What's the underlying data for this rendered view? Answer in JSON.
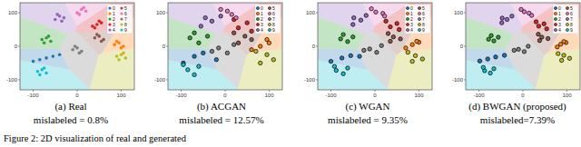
{
  "chart_data": [
    {
      "type": "scatter",
      "title": "(a) Real",
      "annotation": "mislabeled = 0.8%",
      "xlim": [
        -130,
        130
      ],
      "ylim": [
        -130,
        130
      ],
      "xticks": [
        -100,
        0,
        100
      ],
      "yticks": [
        -100,
        0,
        100
      ],
      "grid": false,
      "legend": "upper right",
      "marker": "dot",
      "series": [
        {
          "name": "0",
          "color": "#1f77b4",
          "x": [
            -100,
            -85,
            -70,
            -55,
            -40
          ],
          "values": [
            -45,
            -40,
            -35,
            -30,
            -25
          ]
        },
        {
          "name": "1",
          "color": "#ff7f0e",
          "x": [
            85,
            95,
            105,
            90,
            100
          ],
          "values": [
            5,
            10,
            0,
            15,
            -5
          ]
        },
        {
          "name": "2",
          "color": "#2ca02c",
          "x": [
            -80,
            -70,
            -60,
            -75,
            -65
          ],
          "values": [
            20,
            25,
            15,
            10,
            30
          ]
        },
        {
          "name": "3",
          "color": "#d62728",
          "x": [
            35,
            45,
            55,
            40,
            50
          ],
          "values": [
            60,
            65,
            70,
            55,
            75
          ]
        },
        {
          "name": "4",
          "color": "#9467bd",
          "x": [
            -50,
            -40,
            -30,
            -45,
            -35
          ],
          "values": [
            80,
            90,
            85,
            95,
            75
          ]
        },
        {
          "name": "5",
          "color": "#8c564b",
          "x": [
            40,
            50,
            60,
            45,
            55
          ],
          "values": [
            25,
            30,
            20,
            35,
            15
          ]
        },
        {
          "name": "6",
          "color": "#e377c2",
          "x": [
            0,
            10,
            20,
            5,
            15
          ],
          "values": [
            100,
            110,
            105,
            95,
            115
          ]
        },
        {
          "name": "7",
          "color": "#7f7f7f",
          "x": [
            -10,
            0,
            10,
            -5,
            5
          ],
          "values": [
            -10,
            -5,
            -15,
            0,
            -20
          ]
        },
        {
          "name": "8",
          "color": "#bcbd22",
          "x": [
            90,
            100,
            110,
            95,
            105
          ],
          "values": [
            -30,
            -25,
            -35,
            -40,
            -20
          ]
        },
        {
          "name": "9",
          "color": "#17becf",
          "x": [
            -90,
            -80,
            -70,
            -85,
            -75
          ],
          "values": [
            -75,
            -70,
            -80,
            -85,
            -65
          ]
        }
      ]
    },
    {
      "type": "scatter",
      "title": "(b) ACGAN",
      "annotation": "mislabeled = 12.57%",
      "xlim": [
        -130,
        130
      ],
      "ylim": [
        -130,
        130
      ],
      "xticks": [
        -100,
        0,
        100
      ],
      "yticks": [
        -100,
        0,
        100
      ],
      "grid": false,
      "legend": "upper right",
      "marker": "edged",
      "series": [
        {
          "name": "0",
          "color": "#1f77b4",
          "x": [
            -95,
            -70,
            -50,
            -20
          ],
          "values": [
            -50,
            -30,
            -20,
            -40
          ]
        },
        {
          "name": "1",
          "color": "#ff7f0e",
          "x": [
            80,
            100,
            60,
            95
          ],
          "values": [
            0,
            10,
            -10,
            20
          ]
        },
        {
          "name": "2",
          "color": "#2ca02c",
          "x": [
            -80,
            -60,
            -40,
            -70
          ],
          "values": [
            25,
            10,
            30,
            40
          ]
        },
        {
          "name": "3",
          "color": "#d62728",
          "x": [
            30,
            50,
            20,
            60
          ],
          "values": [
            55,
            70,
            80,
            45
          ]
        },
        {
          "name": "4",
          "color": "#9467bd",
          "x": [
            -45,
            -30,
            -10,
            -55
          ],
          "values": [
            85,
            75,
            90,
            60
          ]
        },
        {
          "name": "5",
          "color": "#8c564b",
          "x": [
            45,
            60,
            30,
            20
          ],
          "values": [
            30,
            20,
            10,
            40
          ]
        },
        {
          "name": "6",
          "color": "#e377c2",
          "x": [
            5,
            15,
            -10,
            25
          ],
          "values": [
            105,
            95,
            110,
            85
          ]
        },
        {
          "name": "7",
          "color": "#7f7f7f",
          "x": [
            -15,
            5,
            20,
            -30
          ],
          "values": [
            -5,
            -20,
            5,
            -15
          ]
        },
        {
          "name": "8",
          "color": "#bcbd22",
          "x": [
            95,
            110,
            80,
            70
          ],
          "values": [
            -25,
            -40,
            -50,
            -15
          ]
        },
        {
          "name": "9",
          "color": "#17becf",
          "x": [
            -85,
            -70,
            -60,
            -95
          ],
          "values": [
            -70,
            -85,
            -60,
            -55
          ]
        }
      ]
    },
    {
      "type": "scatter",
      "title": "(c) WGAN",
      "annotation": "mislabeled = 9.35%",
      "xlim": [
        -130,
        130
      ],
      "ylim": [
        -130,
        130
      ],
      "xticks": [
        -100,
        0,
        100
      ],
      "yticks": [
        -100,
        0,
        100
      ],
      "grid": false,
      "legend": "upper right",
      "marker": "edged",
      "series": [
        {
          "name": "0",
          "color": "#1f77b4",
          "x": [
            -100,
            -75,
            -55,
            -35
          ],
          "values": [
            -45,
            -35,
            -28,
            -30
          ]
        },
        {
          "name": "1",
          "color": "#ff7f0e",
          "x": [
            85,
            100,
            70,
            95
          ],
          "values": [
            5,
            12,
            -5,
            15
          ]
        },
        {
          "name": "2",
          "color": "#2ca02c",
          "x": [
            -78,
            -62,
            -50,
            -72
          ],
          "values": [
            22,
            14,
            28,
            35
          ]
        },
        {
          "name": "3",
          "color": "#d62728",
          "x": [
            35,
            50,
            25,
            55
          ],
          "values": [
            58,
            68,
            75,
            50
          ]
        },
        {
          "name": "4",
          "color": "#9467bd",
          "x": [
            -48,
            -32,
            -20,
            -50
          ],
          "values": [
            85,
            78,
            92,
            65
          ]
        },
        {
          "name": "5",
          "color": "#8c564b",
          "x": [
            42,
            58,
            35,
            30
          ],
          "values": [
            28,
            22,
            15,
            38
          ]
        },
        {
          "name": "6",
          "color": "#e377c2",
          "x": [
            2,
            18,
            -8,
            22
          ],
          "values": [
            102,
            98,
            112,
            90
          ]
        },
        {
          "name": "7",
          "color": "#7f7f7f",
          "x": [
            -12,
            4,
            15,
            -25
          ],
          "values": [
            -8,
            -18,
            2,
            -12
          ]
        },
        {
          "name": "8",
          "color": "#bcbd22",
          "x": [
            92,
            108,
            85,
            75
          ],
          "values": [
            -28,
            -38,
            -45,
            -18
          ]
        },
        {
          "name": "9",
          "color": "#17becf",
          "x": [
            -88,
            -72,
            -62,
            -92
          ],
          "values": [
            -72,
            -82,
            -65,
            -60
          ]
        }
      ]
    },
    {
      "type": "scatter",
      "title": "(d) BWGAN (proposed)",
      "annotation": "mislabeled=7.39%",
      "xlim": [
        -130,
        130
      ],
      "ylim": [
        -130,
        130
      ],
      "xticks": [
        -100,
        0,
        100
      ],
      "yticks": [
        -100,
        0,
        100
      ],
      "grid": false,
      "legend": "upper right",
      "marker": "edged",
      "series": [
        {
          "name": "0",
          "color": "#1f77b4",
          "x": [
            -98,
            -80,
            -62,
            -42
          ],
          "values": [
            -44,
            -38,
            -32,
            -27
          ]
        },
        {
          "name": "1",
          "color": "#ff7f0e",
          "x": [
            86,
            98,
            78,
            93
          ],
          "values": [
            6,
            11,
            -2,
            14
          ]
        },
        {
          "name": "2",
          "color": "#2ca02c",
          "x": [
            -78,
            -66,
            -56,
            -72
          ],
          "values": [
            21,
            16,
            27,
            32
          ]
        },
        {
          "name": "3",
          "color": "#d62728",
          "x": [
            36,
            48,
            30,
            54
          ],
          "values": [
            60,
            67,
            73,
            52
          ]
        },
        {
          "name": "4",
          "color": "#9467bd",
          "x": [
            -47,
            -36,
            -25,
            -48
          ],
          "values": [
            84,
            80,
            90,
            70
          ]
        },
        {
          "name": "5",
          "color": "#8c564b",
          "x": [
            43,
            57,
            38,
            35
          ],
          "values": [
            27,
            23,
            17,
            36
          ]
        },
        {
          "name": "6",
          "color": "#e377c2",
          "x": [
            3,
            14,
            -4,
            20
          ],
          "values": [
            103,
            99,
            110,
            92
          ]
        },
        {
          "name": "7",
          "color": "#7f7f7f",
          "x": [
            -10,
            3,
            12,
            -20
          ],
          "values": [
            -9,
            -16,
            0,
            -12
          ]
        },
        {
          "name": "8",
          "color": "#bcbd22",
          "x": [
            93,
            106,
            88,
            80
          ],
          "values": [
            -27,
            -36,
            -42,
            -22
          ]
        },
        {
          "name": "9",
          "color": "#17becf",
          "x": [
            -87,
            -74,
            -66,
            -90
          ],
          "values": [
            -73,
            -80,
            -67,
            -63
          ]
        }
      ]
    }
  ],
  "caption": "Figure 2: 2D visualization of real and generated"
}
